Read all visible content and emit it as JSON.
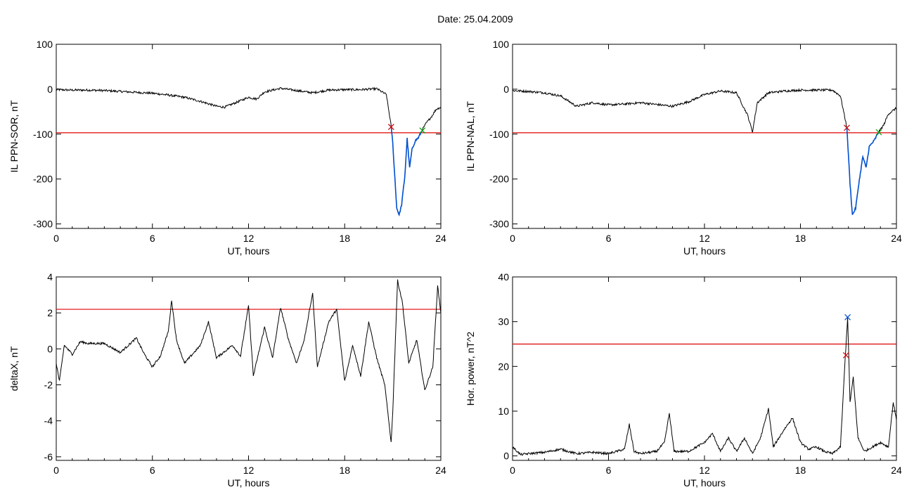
{
  "title": "Date:  25.04.2009",
  "colors": {
    "threshold": "#e00000",
    "highlight": "#0050d0",
    "mark_red": "#d00000",
    "mark_green": "#00a000",
    "mark_blue": "#0050d0",
    "trace": "#000000"
  },
  "chart_data": [
    {
      "type": "line",
      "xlabel": "UT, hours",
      "ylabel": "IL PPN-SOR, nT",
      "xlim": [
        0,
        24
      ],
      "ylim": [
        -310,
        100
      ],
      "xticks": [
        0,
        6,
        12,
        18,
        24
      ],
      "yticks": [
        -300,
        -200,
        -100,
        0,
        100
      ],
      "threshold": -97,
      "series_points": [
        [
          0,
          -1
        ],
        [
          1,
          -2
        ],
        [
          2,
          -2
        ],
        [
          3,
          -3
        ],
        [
          4,
          -5
        ],
        [
          5,
          -7
        ],
        [
          6,
          -9
        ],
        [
          7,
          -13
        ],
        [
          8,
          -18
        ],
        [
          9,
          -27
        ],
        [
          10,
          -38
        ],
        [
          10.5,
          -40
        ],
        [
          11,
          -33
        ],
        [
          12,
          -18
        ],
        [
          12.5,
          -22
        ],
        [
          13,
          -6
        ],
        [
          14,
          2
        ],
        [
          15,
          -3
        ],
        [
          16,
          -8
        ],
        [
          17,
          -2
        ],
        [
          18,
          -1
        ],
        [
          19,
          -1
        ],
        [
          20,
          1
        ],
        [
          20.6,
          -12
        ],
        [
          20.9,
          -82
        ],
        [
          21.0,
          -120
        ],
        [
          21.1,
          -180
        ],
        [
          21.25,
          -265
        ],
        [
          21.4,
          -280
        ],
        [
          21.55,
          -258
        ],
        [
          21.75,
          -195
        ],
        [
          21.9,
          -110
        ],
        [
          22.05,
          -175
        ],
        [
          22.2,
          -135
        ],
        [
          22.4,
          -115
        ],
        [
          22.6,
          -108
        ],
        [
          22.85,
          -90
        ],
        [
          23.1,
          -75
        ],
        [
          23.4,
          -62
        ],
        [
          23.7,
          -45
        ],
        [
          24,
          -40
        ]
      ],
      "highlight_range": [
        20.9,
        22.85
      ],
      "markers": [
        {
          "x": 20.9,
          "y": -84,
          "color": "#d00000"
        },
        {
          "x": 22.85,
          "y": -92,
          "color": "#00a000"
        }
      ]
    },
    {
      "type": "line",
      "xlabel": "UT, hours",
      "ylabel": "IL PPN-NAL, nT",
      "xlim": [
        0,
        24
      ],
      "ylim": [
        -310,
        100
      ],
      "xticks": [
        0,
        6,
        12,
        18,
        24
      ],
      "yticks": [
        -300,
        -200,
        -100,
        0,
        100
      ],
      "threshold": -97,
      "series_points": [
        [
          0,
          -3
        ],
        [
          1,
          -5
        ],
        [
          2,
          -8
        ],
        [
          3,
          -15
        ],
        [
          4,
          -38
        ],
        [
          5,
          -30
        ],
        [
          6,
          -35
        ],
        [
          7,
          -33
        ],
        [
          8,
          -30
        ],
        [
          9,
          -34
        ],
        [
          10,
          -38
        ],
        [
          11,
          -28
        ],
        [
          12,
          -12
        ],
        [
          13,
          -4
        ],
        [
          14,
          -8
        ],
        [
          14.7,
          -58
        ],
        [
          15,
          -95
        ],
        [
          15.3,
          -30
        ],
        [
          16,
          -8
        ],
        [
          17,
          -4
        ],
        [
          18,
          -2
        ],
        [
          19,
          -2
        ],
        [
          20,
          -2
        ],
        [
          20.5,
          -15
        ],
        [
          20.9,
          -85
        ],
        [
          21.1,
          -210
        ],
        [
          21.25,
          -280
        ],
        [
          21.45,
          -265
        ],
        [
          21.65,
          -210
        ],
        [
          21.9,
          -150
        ],
        [
          22.1,
          -175
        ],
        [
          22.3,
          -128
        ],
        [
          22.6,
          -115
        ],
        [
          22.9,
          -95
        ],
        [
          23.2,
          -80
        ],
        [
          23.5,
          -55
        ],
        [
          24,
          -42
        ]
      ],
      "highlight_range": [
        20.9,
        22.9
      ],
      "markers": [
        {
          "x": 20.9,
          "y": -86,
          "color": "#d00000"
        },
        {
          "x": 22.9,
          "y": -96,
          "color": "#00a000"
        }
      ]
    },
    {
      "type": "line",
      "xlabel": "UT, hours",
      "ylabel": "deltaX, nT",
      "xlim": [
        0,
        24
      ],
      "ylim": [
        -6.2,
        4
      ],
      "xticks": [
        0,
        6,
        12,
        18,
        24
      ],
      "yticks": [
        -6,
        -4,
        -2,
        0,
        2,
        4
      ],
      "threshold": 2.2,
      "series_points": [
        [
          0,
          -0.8
        ],
        [
          0.2,
          -1.8
        ],
        [
          0.5,
          0.2
        ],
        [
          1,
          -0.3
        ],
        [
          1.5,
          0.4
        ],
        [
          2,
          0.3
        ],
        [
          3,
          0.3
        ],
        [
          4,
          -0.2
        ],
        [
          5,
          0.6
        ],
        [
          5.5,
          -0.3
        ],
        [
          6,
          -1.0
        ],
        [
          6.5,
          -0.4
        ],
        [
          7,
          1.0
        ],
        [
          7.2,
          2.7
        ],
        [
          7.5,
          0.5
        ],
        [
          8,
          -0.8
        ],
        [
          9,
          0.2
        ],
        [
          9.5,
          1.5
        ],
        [
          10,
          -0.5
        ],
        [
          11,
          0.2
        ],
        [
          11.5,
          -0.4
        ],
        [
          12,
          2.4
        ],
        [
          12.3,
          -1.5
        ],
        [
          13,
          1.2
        ],
        [
          13.5,
          -0.5
        ],
        [
          14,
          2.3
        ],
        [
          14.5,
          0.5
        ],
        [
          15,
          -0.8
        ],
        [
          15.5,
          0.6
        ],
        [
          16,
          3.1
        ],
        [
          16.3,
          -1.0
        ],
        [
          17,
          1.5
        ],
        [
          17.5,
          2.2
        ],
        [
          18,
          -1.8
        ],
        [
          18.5,
          0.2
        ],
        [
          19,
          -1.5
        ],
        [
          19.5,
          1.5
        ],
        [
          20,
          -0.5
        ],
        [
          20.5,
          -2.0
        ],
        [
          20.9,
          -5.2
        ],
        [
          21.0,
          -3.5
        ],
        [
          21.3,
          3.8
        ],
        [
          21.6,
          2.6
        ],
        [
          22,
          -0.8
        ],
        [
          22.5,
          0.5
        ],
        [
          23,
          -2.3
        ],
        [
          23.5,
          -1.0
        ],
        [
          23.8,
          3.5
        ],
        [
          24,
          2.0
        ]
      ],
      "markers": []
    },
    {
      "type": "line",
      "xlabel": "UT, hours",
      "ylabel": "Hor. power, nT^2",
      "xlim": [
        0,
        24
      ],
      "ylim": [
        -1,
        40
      ],
      "xticks": [
        0,
        6,
        12,
        18,
        24
      ],
      "yticks": [
        0,
        10,
        20,
        30,
        40
      ],
      "threshold": 25,
      "series_points": [
        [
          0,
          2
        ],
        [
          0.5,
          0.3
        ],
        [
          1,
          0.5
        ],
        [
          2,
          0.8
        ],
        [
          3,
          1.5
        ],
        [
          4,
          0.5
        ],
        [
          5,
          0.8
        ],
        [
          6,
          0.5
        ],
        [
          7,
          1.5
        ],
        [
          7.3,
          7
        ],
        [
          7.6,
          1
        ],
        [
          8,
          0.5
        ],
        [
          9,
          1
        ],
        [
          9.5,
          3
        ],
        [
          9.8,
          9.5
        ],
        [
          10.1,
          1
        ],
        [
          11,
          1
        ],
        [
          12,
          3
        ],
        [
          12.5,
          5
        ],
        [
          13,
          1
        ],
        [
          13.5,
          4
        ],
        [
          14,
          1
        ],
        [
          14.5,
          4
        ],
        [
          15,
          0.5
        ],
        [
          15.5,
          4
        ],
        [
          16,
          10.5
        ],
        [
          16.3,
          2
        ],
        [
          17,
          6
        ],
        [
          17.5,
          8.5
        ],
        [
          18,
          3
        ],
        [
          18.5,
          1.5
        ],
        [
          19,
          2
        ],
        [
          19.5,
          1
        ],
        [
          20,
          0.5
        ],
        [
          20.5,
          2
        ],
        [
          20.8,
          22
        ],
        [
          20.95,
          31
        ],
        [
          21.1,
          12
        ],
        [
          21.3,
          17.5
        ],
        [
          21.6,
          4
        ],
        [
          22,
          1
        ],
        [
          22.5,
          2
        ],
        [
          23,
          3
        ],
        [
          23.5,
          2
        ],
        [
          23.8,
          12
        ],
        [
          24,
          8
        ]
      ],
      "markers": [
        {
          "x": 20.85,
          "y": 22.5,
          "color": "#d00000"
        },
        {
          "x": 20.95,
          "y": 31,
          "color": "#0050d0"
        }
      ]
    }
  ]
}
